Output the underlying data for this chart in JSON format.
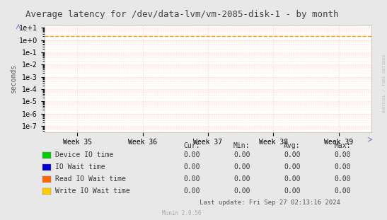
{
  "title": "Average latency for /dev/data-lvm/vm-2085-disk-1 - by month",
  "ylabel": "seconds",
  "background_color": "#e8e8e8",
  "plot_bg_color": "#ffffff",
  "grid_color": "#ffcccc",
  "grid_style": ":",
  "x_labels": [
    "Week 35",
    "Week 36",
    "Week 37",
    "Week 38",
    "Week 39"
  ],
  "x_positions": [
    0,
    1,
    2,
    3,
    4
  ],
  "horizontal_line_y": 2.0,
  "horizontal_line_color": "#ff9900",
  "horizontal_line_style": "--",
  "legend_entries": [
    {
      "label": "Device IO time",
      "color": "#00cc00"
    },
    {
      "label": "IO Wait time",
      "color": "#0000cc"
    },
    {
      "label": "Read IO Wait time",
      "color": "#ff6600"
    },
    {
      "label": "Write IO Wait time",
      "color": "#ffcc00"
    }
  ],
  "table_headers": [
    "Cur:",
    "Min:",
    "Avg:",
    "Max:"
  ],
  "table_rows": [
    [
      "Device IO time",
      "0.00",
      "0.00",
      "0.00",
      "0.00"
    ],
    [
      "IO Wait time",
      "0.00",
      "0.00",
      "0.00",
      "0.00"
    ],
    [
      "Read IO Wait time",
      "0.00",
      "0.00",
      "0.00",
      "0.00"
    ],
    [
      "Write IO Wait time",
      "0.00",
      "0.00",
      "0.00",
      "0.00"
    ]
  ],
  "footer": "Last update: Fri Sep 27 02:13:16 2024",
  "watermark": "Munin 2.0.56",
  "side_label": "RRDTOOL / TOBI OETIKER",
  "title_fontsize": 9,
  "axis_fontsize": 7,
  "legend_fontsize": 7,
  "footer_fontsize": 6.5
}
